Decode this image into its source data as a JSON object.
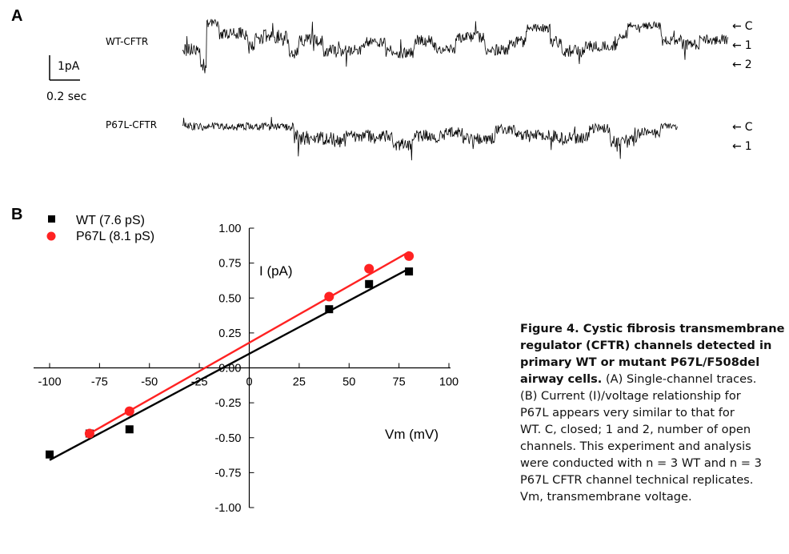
{
  "panel_a": {
    "label": "A",
    "scale_current": "1pA",
    "scale_time": "0.2 sec",
    "traces": [
      {
        "name": "WT-CFTR",
        "levels": [
          "C",
          "1",
          "2"
        ]
      },
      {
        "name": "P67L-CFTR",
        "levels": [
          "C",
          "1"
        ]
      }
    ],
    "arrow_glyph": "←"
  },
  "panel_b": {
    "label": "B",
    "legend": [
      {
        "marker": "square",
        "text": "WT (7.6 pS)",
        "color": "#000000"
      },
      {
        "marker": "circle",
        "text": "P67L (8.1 pS)",
        "color": "#ff2222"
      }
    ]
  },
  "chart_data": {
    "type": "scatter",
    "xlabel": "Vm (mV)",
    "ylabel": "I (pA)",
    "xlim": [
      -100,
      100
    ],
    "ylim": [
      -1.0,
      1.0
    ],
    "xticks": [
      "-100",
      "-75",
      "-50",
      "-25",
      "0",
      "25",
      "50",
      "75",
      "100"
    ],
    "yticks": [
      "1.00",
      "0.75",
      "0.50",
      "0.25",
      "0.00",
      "-0.25",
      "-0.50",
      "-0.75",
      "-1.00"
    ],
    "xtick_values": [
      -100,
      -75,
      -50,
      -25,
      0,
      25,
      50,
      75,
      100
    ],
    "ytick_values": [
      1.0,
      0.75,
      0.5,
      0.25,
      0.0,
      -0.25,
      -0.5,
      -0.75,
      -1.0
    ],
    "legend_position": "top-left",
    "series": [
      {
        "name": "WT (7.6 pS)",
        "color": "#000000",
        "marker": "square",
        "x": [
          -100,
          -80,
          -60,
          40,
          60,
          80
        ],
        "y": [
          -0.62,
          -0.47,
          -0.44,
          0.42,
          0.6,
          0.69
        ],
        "fit": {
          "x": [
            -100,
            80
          ],
          "y": [
            -0.66,
            0.71
          ]
        }
      },
      {
        "name": "P67L (8.1 pS)",
        "color": "#ff2222",
        "marker": "circle",
        "x": [
          -80,
          -60,
          40,
          60,
          80
        ],
        "y": [
          -0.47,
          -0.31,
          0.51,
          0.71,
          0.8
        ],
        "fit": {
          "x": [
            -80,
            80
          ],
          "y": [
            -0.47,
            0.83
          ]
        }
      }
    ]
  },
  "caption": {
    "lines_bold": [
      "Figure 4. Cystic fibrosis transmembrane",
      "regulator (CFTR) channels detected in",
      "primary WT or mutant P67L/F508del"
    ],
    "line4_bold": "airway cells.",
    "line4_rest": " (A) Single-channel traces.",
    "lines_rest": [
      "(B) Current (I)/voltage relationship for",
      "P67L appears very similar to that for",
      "WT. C, closed; 1 and 2, number of open",
      "channels. This experiment and analysis",
      "were conducted with n = 3 WT and n = 3",
      "P67L CFTR channel technical replicates.",
      "Vm, transmembrane voltage."
    ]
  }
}
